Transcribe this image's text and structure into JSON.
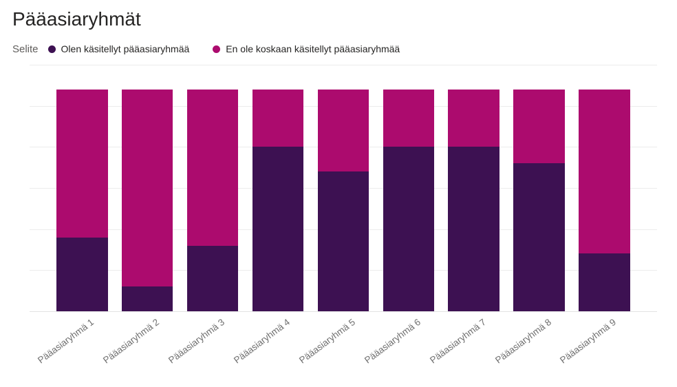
{
  "title": "Pääasiaryhmät",
  "legend": {
    "title": "Selite",
    "items": [
      {
        "label": "Olen käsitellyt pääasiaryhmää",
        "color": "#3d1152"
      },
      {
        "label": "En ole koskaan käsitellyt pääasiaryhmää",
        "color": "#ac0b6e"
      }
    ]
  },
  "chart_data": {
    "type": "bar",
    "stacked": true,
    "title": "Pääasiaryhmät",
    "categories": [
      "Pääasiaryhmä 1",
      "Pääasiaryhmä 2",
      "Pääasiaryhmä 3",
      "Pääasiaryhmä 4",
      "Pääasiaryhmä 5",
      "Pääasiaryhmä 6",
      "Pääasiaryhmä 7",
      "Pääasiaryhmä 8",
      "Pääasiaryhmä 9"
    ],
    "series": [
      {
        "name": "Olen käsitellyt pääasiaryhmää",
        "color": "#3d1152",
        "values": [
          9,
          3,
          8,
          20,
          17,
          20,
          20,
          18,
          7
        ]
      },
      {
        "name": "En ole koskaan käsitellyt pääasiaryhmää",
        "color": "#ac0b6e",
        "values": [
          18,
          24,
          19,
          7,
          10,
          7,
          7,
          9,
          20
        ]
      }
    ],
    "bar_total": 27,
    "xlabel": "",
    "ylabel": "",
    "ylim": [
      0,
      30
    ],
    "gridline_step": 5,
    "grid": true,
    "y_axis_labels_visible": false,
    "legend_position": "top",
    "x_label_rotation_deg": -37
  },
  "colors": {
    "background": "#ffffff",
    "title_text": "#252423",
    "legend_title_text": "#605e5c",
    "legend_item_text": "#252423",
    "gridline": "#ececec",
    "axis_line": "#e2e2e2",
    "x_label_text": "#6f6f6f"
  }
}
